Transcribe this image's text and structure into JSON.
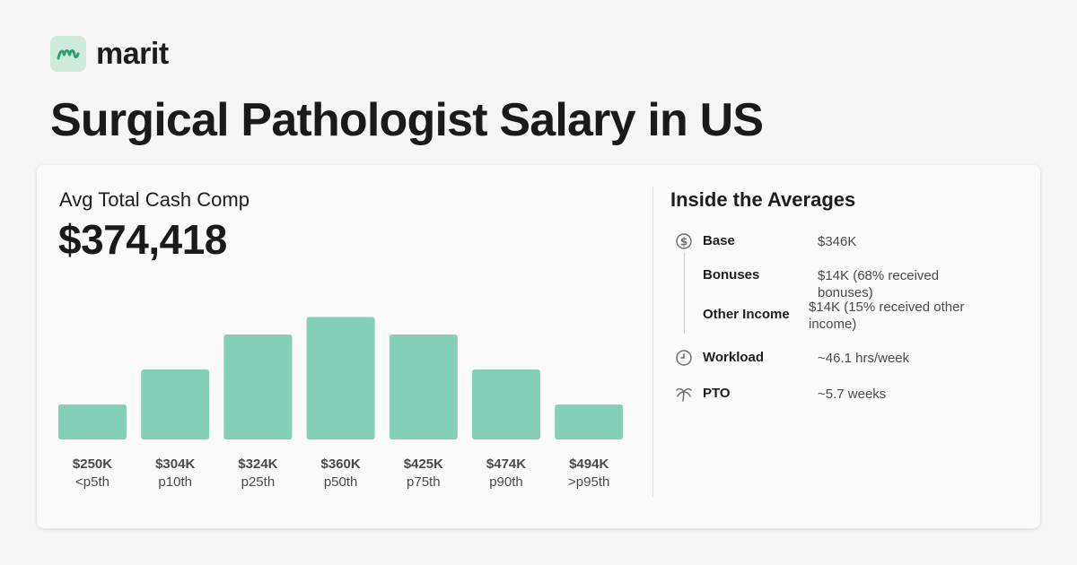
{
  "brand": {
    "name": "marit",
    "accent": "#cdeadd",
    "mark_color": "#2f9e6e"
  },
  "page_title": "Surgical Pathologist Salary in US",
  "summary": {
    "label": "Avg Total Cash Comp",
    "value": "$374,418"
  },
  "chart_data": {
    "type": "bar",
    "bar_color": "#83cfb7",
    "categories": [
      "<p5th",
      "p10th",
      "p25th",
      "p50th",
      "p75th",
      "p90th",
      ">p95th"
    ],
    "value_labels": [
      "$250K",
      "$304K",
      "$324K",
      "$360K",
      "$425K",
      "$474K",
      "$494K"
    ],
    "values": [
      250000,
      304000,
      324000,
      360000,
      425000,
      474000,
      494000
    ],
    "relative_bar_heights": [
      2,
      4,
      6,
      7,
      6,
      4,
      2
    ]
  },
  "averages": {
    "title": "Inside the Averages",
    "base": {
      "label": "Base",
      "value": "$346K",
      "icon": "dollar-circle-icon"
    },
    "bonuses": {
      "label": "Bonuses",
      "value": "$14K (68% received bonuses)"
    },
    "other_income": {
      "label": "Other Income",
      "value": "$14K (15% received other income)"
    },
    "workload": {
      "label": "Workload",
      "value": "~46.1 hrs/week",
      "icon": "clock-icon"
    },
    "pto": {
      "label": "PTO",
      "value": "~5.7 weeks",
      "icon": "palm-tree-icon"
    }
  }
}
